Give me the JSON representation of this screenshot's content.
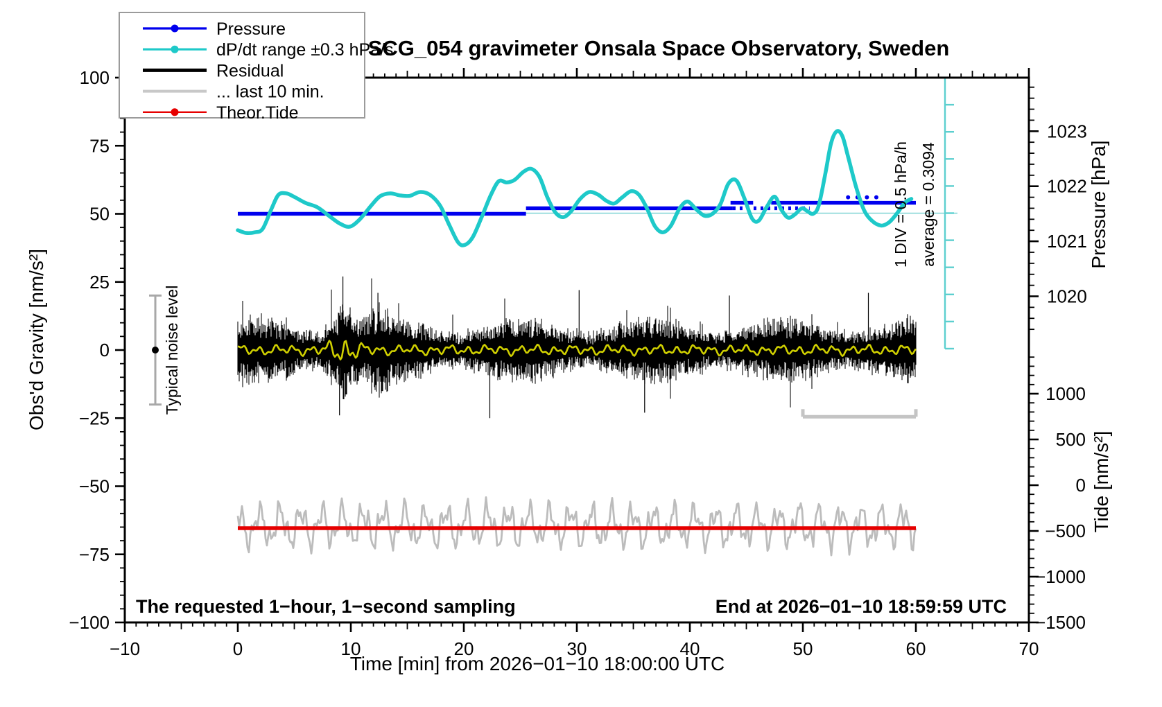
{
  "title": "SCG_054 gravimeter Onsala Space Observatory, Sweden",
  "footer_left": "The requested 1−hour, 1−second sampling",
  "footer_right": "End at 2026−01−10 18:59:59 UTC",
  "legend": [
    {
      "label": "Pressure",
      "color": "#0000ee",
      "marker": "dot",
      "line_width": 3.2
    },
    {
      "label": "dP/dt range ±0.3 hPa/s",
      "color": "#1ec9c9",
      "marker": "dot",
      "line_width": 3.2
    },
    {
      "label": "Residual",
      "color": "#000000",
      "marker": "line",
      "line_width": 5
    },
    {
      "label": "... last 10 min.",
      "color": "#c8c8c8",
      "marker": "line",
      "line_width": 4
    },
    {
      "label": "Theor.Tide",
      "color": "#e60000",
      "marker": "dot",
      "line_width": 2.4
    }
  ],
  "chart_data": {
    "type": "line",
    "title": "SCG_054 gravimeter Onsala Space Observatory, Sweden",
    "x_axis": {
      "label": "Time [min] from 2026−01−10 18:00:00 UTC",
      "range": [
        -10,
        70
      ],
      "major_tick_step": 10,
      "medium_tick_step": 5,
      "minor_tick_step": 1
    },
    "y_axis_gravity": {
      "label": "Obs'd Gravity [nm/s²]",
      "range": [
        -100,
        100
      ],
      "major_tick_step": 25,
      "minor_tick_step": 5
    },
    "y_axis_pressure": {
      "label": "Pressure [hPa]",
      "tick_labels": [
        1023,
        1022,
        1021,
        1020
      ],
      "minor_tick_step": 0.2
    },
    "y_axis_tide": {
      "label": "Tide [nm/s²]",
      "tick_labels": [
        1000,
        500,
        0,
        -500,
        -1000,
        -1500
      ],
      "minor_tick_step": 100
    },
    "series": [
      {
        "name": "Pressure",
        "color": "#0000ee",
        "axis": "pressure",
        "segments": [
          {
            "t": [
              0,
              25.5
            ],
            "hPa": 1021.5,
            "style": "solid"
          },
          {
            "t": [
              25.5,
              43.8
            ],
            "hPa": 1021.6,
            "style": "solid"
          },
          {
            "t": [
              43.8,
              50.6
            ],
            "hPa": 1021.6,
            "style": "dotted"
          },
          {
            "t": [
              43.6,
              45.6
            ],
            "hPa": 1021.7,
            "style": "solid"
          },
          {
            "t": [
              47.2,
              60
            ],
            "hPa": 1021.7,
            "style": "solid"
          },
          {
            "t": [
              54,
              56.5
            ],
            "hPa": 1021.8,
            "style": "dots"
          }
        ]
      },
      {
        "name": "dP/dt range ±0.3 hPa/s",
        "color": "#1ec9c9",
        "axis": "gravity",
        "points": [
          [
            0,
            44
          ],
          [
            0.7,
            43
          ],
          [
            1.5,
            43.2
          ],
          [
            2.2,
            44.5
          ],
          [
            3,
            52
          ],
          [
            3.6,
            57
          ],
          [
            4.3,
            57.5
          ],
          [
            5,
            56.2
          ],
          [
            6,
            54
          ],
          [
            7,
            52.5
          ],
          [
            8,
            49.5
          ],
          [
            9,
            46.5
          ],
          [
            9.9,
            45.3
          ],
          [
            10.8,
            48
          ],
          [
            11.8,
            53
          ],
          [
            12.6,
            56.5
          ],
          [
            13.5,
            57.5
          ],
          [
            14.3,
            56.8
          ],
          [
            15.2,
            56.6
          ],
          [
            16.1,
            58
          ],
          [
            17,
            57
          ],
          [
            17.9,
            53
          ],
          [
            18.7,
            46
          ],
          [
            19.5,
            39.5
          ],
          [
            20.1,
            38.6
          ],
          [
            20.8,
            41.5
          ],
          [
            21.6,
            49
          ],
          [
            22.4,
            57
          ],
          [
            23.1,
            62
          ],
          [
            23.8,
            61.5
          ],
          [
            24.5,
            62.5
          ],
          [
            25.3,
            65.5
          ],
          [
            26,
            66.5
          ],
          [
            26.7,
            63.5
          ],
          [
            27.4,
            56
          ],
          [
            28.1,
            50.5
          ],
          [
            28.8,
            48.8
          ],
          [
            29.5,
            51
          ],
          [
            30.3,
            55.5
          ],
          [
            31.1,
            58
          ],
          [
            31.9,
            57
          ],
          [
            32.6,
            54.8
          ],
          [
            33.3,
            53.8
          ],
          [
            34,
            56
          ],
          [
            34.8,
            58.3
          ],
          [
            35.5,
            57
          ],
          [
            36.2,
            52
          ],
          [
            36.9,
            45.5
          ],
          [
            37.6,
            43.2
          ],
          [
            38.3,
            45.5
          ],
          [
            39.1,
            52
          ],
          [
            39.8,
            54.5
          ],
          [
            40.6,
            51.5
          ],
          [
            41.3,
            49.3
          ],
          [
            42,
            50
          ],
          [
            42.7,
            53.5
          ],
          [
            43.4,
            61
          ],
          [
            44.1,
            62.3
          ],
          [
            44.8,
            56
          ],
          [
            45.5,
            48.3
          ],
          [
            46.1,
            47.5
          ],
          [
            46.8,
            52.5
          ],
          [
            47.5,
            56.3
          ],
          [
            48.1,
            51.5
          ],
          [
            48.7,
            48.6
          ],
          [
            49.3,
            49.8
          ],
          [
            49.9,
            52
          ],
          [
            50.4,
            51
          ],
          [
            50.9,
            50
          ],
          [
            51.4,
            53
          ],
          [
            52,
            65
          ],
          [
            52.5,
            76
          ],
          [
            53,
            80.3
          ],
          [
            53.5,
            78.5
          ],
          [
            54,
            71
          ],
          [
            54.7,
            60
          ],
          [
            55.4,
            51.5
          ],
          [
            56.1,
            47.5
          ],
          [
            56.9,
            45.7
          ],
          [
            57.6,
            46.8
          ],
          [
            58.3,
            50
          ],
          [
            59,
            54
          ],
          [
            59.6,
            55.5
          ]
        ]
      },
      {
        "name": "Residual",
        "color": "#000000",
        "axis": "gravity",
        "t_range": [
          0,
          60
        ],
        "mean": 0,
        "typical_amplitude": 10,
        "seed": 42,
        "spikes": [
          [
            9.0,
            -24
          ],
          [
            9.3,
            27
          ],
          [
            12.4,
            21
          ],
          [
            22.3,
            -25
          ],
          [
            30.2,
            22
          ],
          [
            36.0,
            -23
          ],
          [
            43.5,
            20
          ],
          [
            55.8,
            21
          ]
        ]
      },
      {
        "name": "smoothed residual",
        "color": "#cfcf00",
        "axis": "gravity",
        "t_range": [
          0,
          60
        ],
        "mean": 0,
        "typical_amplitude": 1.2,
        "burst": {
          "t": 9.4,
          "amplitude": 3.5
        }
      },
      {
        "name": "... last 10 min.",
        "color": "#bcbcbc",
        "axis": "gravity",
        "t_range": [
          0,
          60
        ],
        "mean": -64.6,
        "amplitude": 9,
        "seed": 7
      },
      {
        "name": "Theor.Tide",
        "color": "#e60000",
        "axis": "tide",
        "t_range": [
          0,
          60
        ],
        "value": -470
      }
    ],
    "annotations": {
      "average_line": {
        "hPa": 1021.51,
        "color": "#8fd9d9"
      },
      "div_ruler": {
        "divisions": 10,
        "label": "1 DIV = 0.5 hPa/h",
        "color": "#5ccfcf"
      },
      "average_text": "average = 0.3094",
      "noise_level": {
        "t": -7.3,
        "center": 0,
        "range": [
          -20,
          20
        ],
        "label": "Typical noise level"
      },
      "last10_bar": {
        "t": [
          50,
          60
        ],
        "gravity": -24.5
      }
    }
  }
}
